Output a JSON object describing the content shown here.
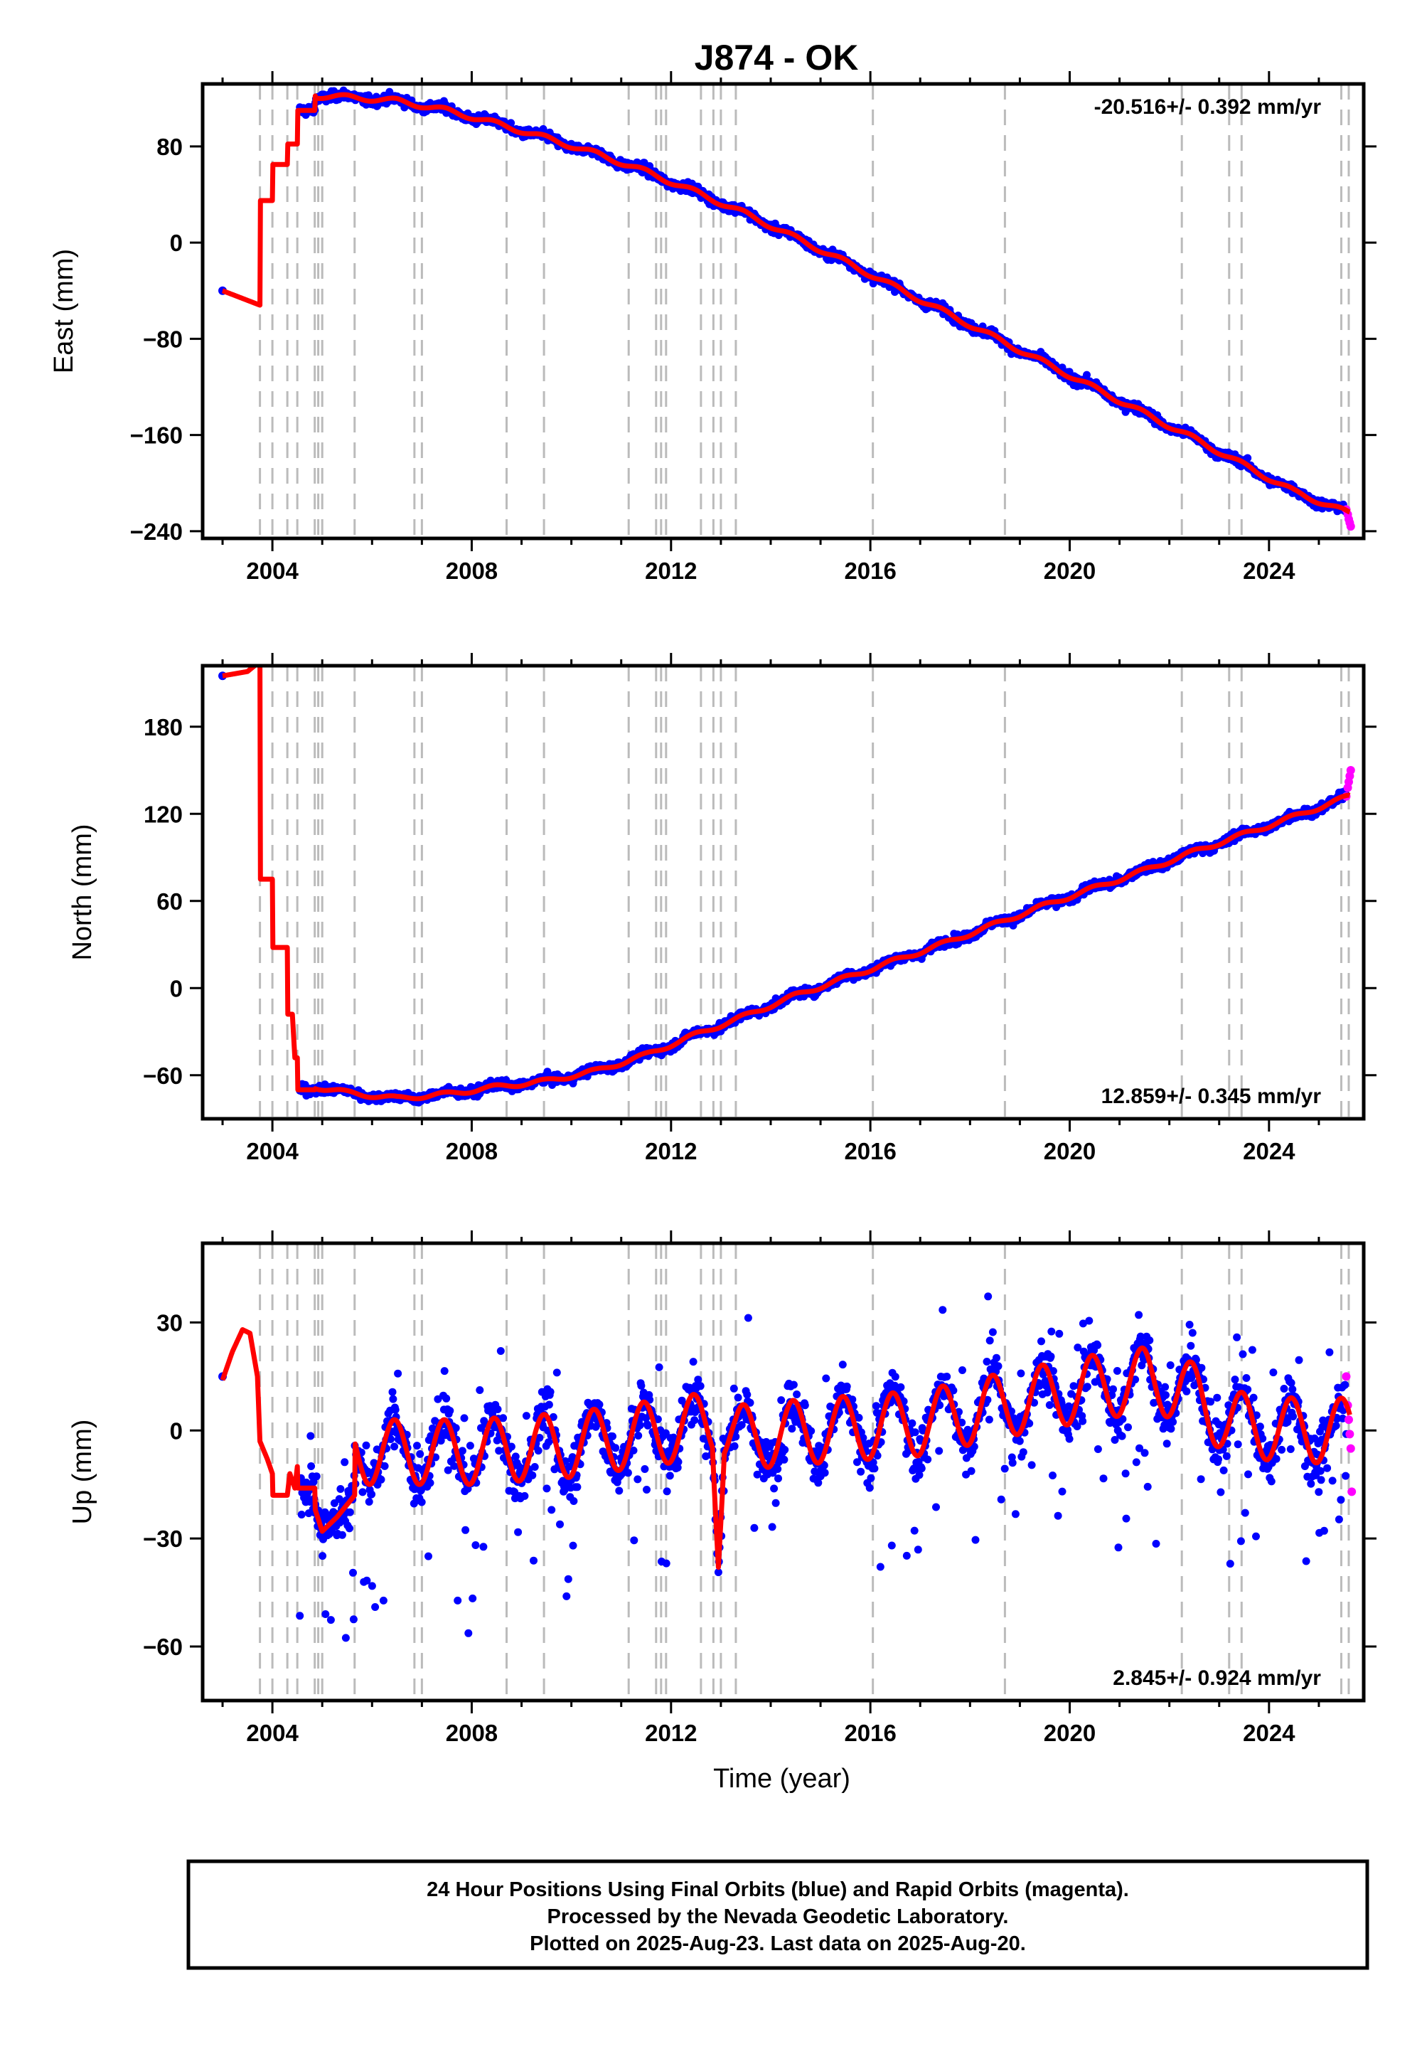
{
  "title": "J874 - OK",
  "footer": {
    "lines": [
      "24 Hour Positions Using Final Orbits (blue) and Rapid Orbits (magenta).",
      "Processed by the Nevada Geodetic Laboratory.",
      "Plotted on 2025-Aug-23. Last data on 2025-Aug-20."
    ]
  },
  "colors": {
    "final_orbits": "#0000ff",
    "rapid_orbits": "#ff00ff",
    "model_fit": "#ff0000",
    "event_lines": "#bbbbbb"
  },
  "chart_data": [
    {
      "type": "scatter",
      "name": "East",
      "ylabel": "East (mm)",
      "xlabel": "",
      "xlim": [
        2002.6,
        2025.9
      ],
      "ylim": [
        -246,
        132
      ],
      "xticks": [
        2004,
        2008,
        2012,
        2016,
        2020,
        2024
      ],
      "yticks": [
        -240,
        -160,
        -80,
        0,
        80
      ],
      "rate_label": "-20.516+/- 0.392 mm/yr",
      "rate_position": "top-right",
      "event_lines": [
        2003.75,
        2004.0,
        2004.3,
        2004.5,
        2004.85,
        2004.92,
        2005.0,
        2005.65,
        2006.85,
        2007.0,
        2008.7,
        2009.45,
        2011.15,
        2011.7,
        2011.8,
        2011.9,
        2012.6,
        2012.85,
        2013.0,
        2013.3,
        2016.05,
        2018.7,
        2022.25,
        2023.2,
        2023.45,
        2025.45,
        2025.6
      ],
      "model": {
        "offsets": [
          [
            2003.0,
            -40
          ],
          [
            2003.75,
            -52
          ],
          [
            2003.76,
            35
          ],
          [
            2004.0,
            35
          ],
          [
            2004.01,
            65
          ],
          [
            2004.3,
            65
          ],
          [
            2004.31,
            82
          ],
          [
            2004.5,
            82
          ],
          [
            2004.51,
            110
          ],
          [
            2004.85,
            110
          ],
          [
            2004.86,
            122
          ]
        ],
        "trend_points": [
          [
            2004.86,
            122
          ],
          [
            2005.5,
            121
          ],
          [
            2006.5,
            118
          ],
          [
            2007.5,
            110
          ],
          [
            2008.5,
            99
          ],
          [
            2009.5,
            87
          ],
          [
            2010.5,
            74
          ],
          [
            2011.5,
            59
          ],
          [
            2012.5,
            42
          ],
          [
            2013.5,
            24
          ],
          [
            2014.5,
            4
          ],
          [
            2015.5,
            -16
          ],
          [
            2016.5,
            -37
          ],
          [
            2017.5,
            -58
          ],
          [
            2018.5,
            -79
          ],
          [
            2019.5,
            -100
          ],
          [
            2020.5,
            -121
          ],
          [
            2021.5,
            -142
          ],
          [
            2022.5,
            -163
          ],
          [
            2023.5,
            -185
          ],
          [
            2024.5,
            -207
          ],
          [
            2025.6,
            -225
          ]
        ],
        "seasonal_amp": 2
      },
      "noise": 5,
      "first_point": [
        2003.0,
        -40
      ],
      "rapid_points": [
        [
          2025.55,
          -222
        ],
        [
          2025.58,
          -226
        ],
        [
          2025.6,
          -230
        ],
        [
          2025.62,
          -233
        ],
        [
          2025.64,
          -236
        ]
      ]
    },
    {
      "type": "scatter",
      "name": "North",
      "ylabel": "North (mm)",
      "xlabel": "",
      "xlim": [
        2002.6,
        2025.9
      ],
      "ylim": [
        -90,
        222
      ],
      "xticks": [
        2004,
        2008,
        2012,
        2016,
        2020,
        2024
      ],
      "yticks": [
        -60,
        0,
        60,
        120,
        180
      ],
      "rate_label": "12.859+/- 0.345 mm/yr",
      "rate_position": "bottom-right",
      "event_lines": [
        2003.75,
        2004.0,
        2004.3,
        2004.5,
        2004.85,
        2004.92,
        2005.0,
        2005.65,
        2006.85,
        2007.0,
        2008.7,
        2009.45,
        2011.15,
        2011.7,
        2011.8,
        2011.9,
        2012.6,
        2012.85,
        2013.0,
        2013.3,
        2016.05,
        2018.7,
        2022.25,
        2023.2,
        2023.45,
        2025.45,
        2025.6
      ],
      "model": {
        "offsets": [
          [
            2003.0,
            215
          ],
          [
            2003.5,
            218
          ],
          [
            2003.75,
            225
          ],
          [
            2003.76,
            75
          ],
          [
            2004.0,
            75
          ],
          [
            2004.01,
            28
          ],
          [
            2004.3,
            28
          ],
          [
            2004.31,
            -18
          ],
          [
            2004.4,
            -18
          ],
          [
            2004.45,
            -48
          ],
          [
            2004.5,
            -48
          ],
          [
            2004.51,
            -70
          ],
          [
            2004.85,
            -70
          ]
        ],
        "trend_points": [
          [
            2004.85,
            -68
          ],
          [
            2005.5,
            -72
          ],
          [
            2006.5,
            -76
          ],
          [
            2007.5,
            -73
          ],
          [
            2008.5,
            -68
          ],
          [
            2009.5,
            -64
          ],
          [
            2010.5,
            -57
          ],
          [
            2011.5,
            -46
          ],
          [
            2012.5,
            -32
          ],
          [
            2013.5,
            -19
          ],
          [
            2014.5,
            -5
          ],
          [
            2015.5,
            7
          ],
          [
            2016.5,
            19
          ],
          [
            2017.5,
            31
          ],
          [
            2018.5,
            44
          ],
          [
            2019.5,
            57
          ],
          [
            2020.5,
            69
          ],
          [
            2021.5,
            81
          ],
          [
            2022.5,
            94
          ],
          [
            2023.5,
            106
          ],
          [
            2024.5,
            118
          ],
          [
            2025.6,
            132
          ]
        ],
        "seasonal_amp": 1.5
      },
      "noise": 4,
      "first_point": [
        2003.0,
        215
      ],
      "rapid_points": [
        [
          2025.55,
          132
        ],
        [
          2025.58,
          138
        ],
        [
          2025.6,
          142
        ],
        [
          2025.62,
          146
        ],
        [
          2025.64,
          150
        ]
      ]
    },
    {
      "type": "scatter",
      "name": "Up",
      "ylabel": "Up (mm)",
      "xlabel": "Time (year)",
      "xlim": [
        2002.6,
        2025.9
      ],
      "ylim": [
        -75,
        52
      ],
      "xticks": [
        2004,
        2008,
        2012,
        2016,
        2020,
        2024
      ],
      "yticks": [
        -60,
        -30,
        0,
        30
      ],
      "rate_label": "2.845+/- 0.924 mm/yr",
      "rate_position": "bottom-right",
      "event_lines": [
        2003.75,
        2004.0,
        2004.3,
        2004.5,
        2004.85,
        2004.92,
        2005.0,
        2005.65,
        2006.85,
        2007.0,
        2008.7,
        2009.45,
        2011.15,
        2011.7,
        2011.8,
        2011.9,
        2012.6,
        2012.85,
        2013.0,
        2013.3,
        2016.05,
        2018.7,
        2022.25,
        2023.2,
        2023.45,
        2025.45,
        2025.6
      ],
      "model": {
        "early_curve": [
          [
            2003.0,
            14
          ],
          [
            2003.2,
            22
          ],
          [
            2003.4,
            28
          ],
          [
            2003.55,
            27
          ],
          [
            2003.7,
            15
          ],
          [
            2003.75,
            -3
          ],
          [
            2003.9,
            -8
          ],
          [
            2004.0,
            -12
          ],
          [
            2004.01,
            -18
          ],
          [
            2004.3,
            -18
          ],
          [
            2004.35,
            -12
          ],
          [
            2004.45,
            -16
          ],
          [
            2004.5,
            -10
          ],
          [
            2004.51,
            -16
          ],
          [
            2004.85,
            -16
          ],
          [
            2004.86,
            -22
          ],
          [
            2005.0,
            -28
          ],
          [
            2005.3,
            -24
          ],
          [
            2005.65,
            -18
          ]
        ],
        "trend_points": [
          [
            2005.65,
            -6
          ],
          [
            2008.0,
            -6
          ],
          [
            2010.0,
            -4
          ],
          [
            2012.0,
            0
          ],
          [
            2012.9,
            2
          ],
          [
            2013.3,
            -2
          ],
          [
            2015.0,
            0
          ],
          [
            2017.0,
            2
          ],
          [
            2019.0,
            8
          ],
          [
            2020.5,
            12
          ],
          [
            2021.5,
            14
          ],
          [
            2022.25,
            12
          ],
          [
            2023.2,
            2
          ],
          [
            2024.5,
            0
          ],
          [
            2025.6,
            0
          ]
        ],
        "seasonal_amp": 9,
        "dip": [
          2012.95,
          -38
        ]
      },
      "noise": 9,
      "first_point": [
        2003.0,
        15
      ],
      "rapid_points": [
        [
          2025.55,
          15
        ],
        [
          2025.58,
          7
        ],
        [
          2025.6,
          3
        ],
        [
          2025.62,
          -1
        ],
        [
          2025.64,
          -5
        ],
        [
          2025.66,
          -17
        ]
      ]
    }
  ]
}
